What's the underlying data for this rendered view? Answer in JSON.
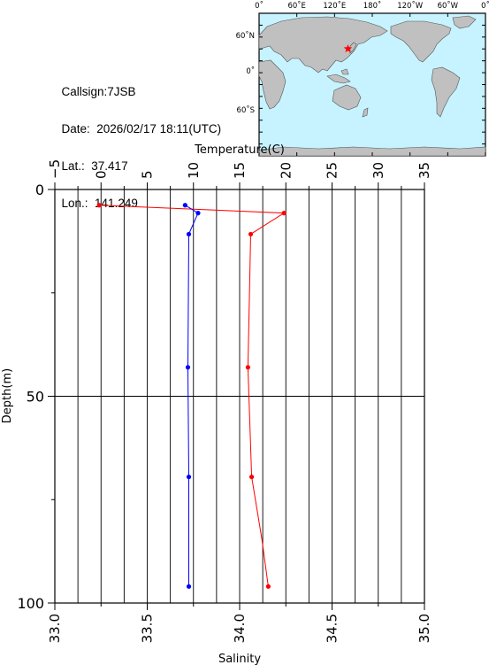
{
  "station": {
    "callsign": "Callsign:7JSB",
    "date": "Date:  2026/02/17 18:11(UTC)",
    "lat": "Lat.:  37.417",
    "lon": "Lon.:  141.249"
  },
  "map": {
    "top_labels": [
      "0˚",
      "60˚E",
      "120˚E",
      "180˚",
      "120˚W",
      "60˚W",
      "0˚"
    ],
    "left_labels": [
      "60˚N",
      "0˚",
      "60˚S"
    ],
    "marker": {
      "lon": 141.249,
      "lat": 37.417
    },
    "colors": {
      "ocean": "#c6f3ff",
      "land": "#c0c0c0",
      "marker": "#ff0000"
    }
  },
  "chart_data": {
    "type": "line",
    "temperature_axis": {
      "label": "Temperature(C)",
      "range": [
        -5,
        35
      ],
      "ticks": [
        "−5",
        "0",
        "5",
        "10",
        "15",
        "20",
        "25",
        "30",
        "35"
      ]
    },
    "salinity_axis": {
      "label": "Salinity",
      "range": [
        33.0,
        35.0
      ],
      "ticks": [
        "33.0",
        "33.5",
        "34.0",
        "34.5",
        "35.0"
      ]
    },
    "depth_axis": {
      "label": "Depth(m)",
      "range": [
        0,
        100
      ],
      "inverted": true,
      "ticks": [
        "0",
        "50",
        "100"
      ]
    },
    "grid": true,
    "series": [
      {
        "axis": "temperature",
        "color": "#ff0000",
        "points": [
          {
            "value": -0.2,
            "depth": 3.8
          },
          {
            "value": 19.8,
            "depth": 5.7
          },
          {
            "value": 16.2,
            "depth": 10.8
          },
          {
            "value": 15.9,
            "depth": 43
          },
          {
            "value": 16.3,
            "depth": 69.5
          },
          {
            "value": 17.4,
            "depth": 84.5
          },
          {
            "value": 18.1,
            "depth": 96
          }
        ]
      },
      {
        "axis": "salinity",
        "color": "#0000ff",
        "points": [
          {
            "value": 33.705,
            "depth": 3.8
          },
          {
            "value": 33.775,
            "depth": 5.7
          },
          {
            "value": 33.725,
            "depth": 10.8
          },
          {
            "value": 33.72,
            "depth": 43
          },
          {
            "value": 33.725,
            "depth": 69.5
          },
          {
            "value": 33.725,
            "depth": 96
          }
        ]
      }
    ]
  }
}
